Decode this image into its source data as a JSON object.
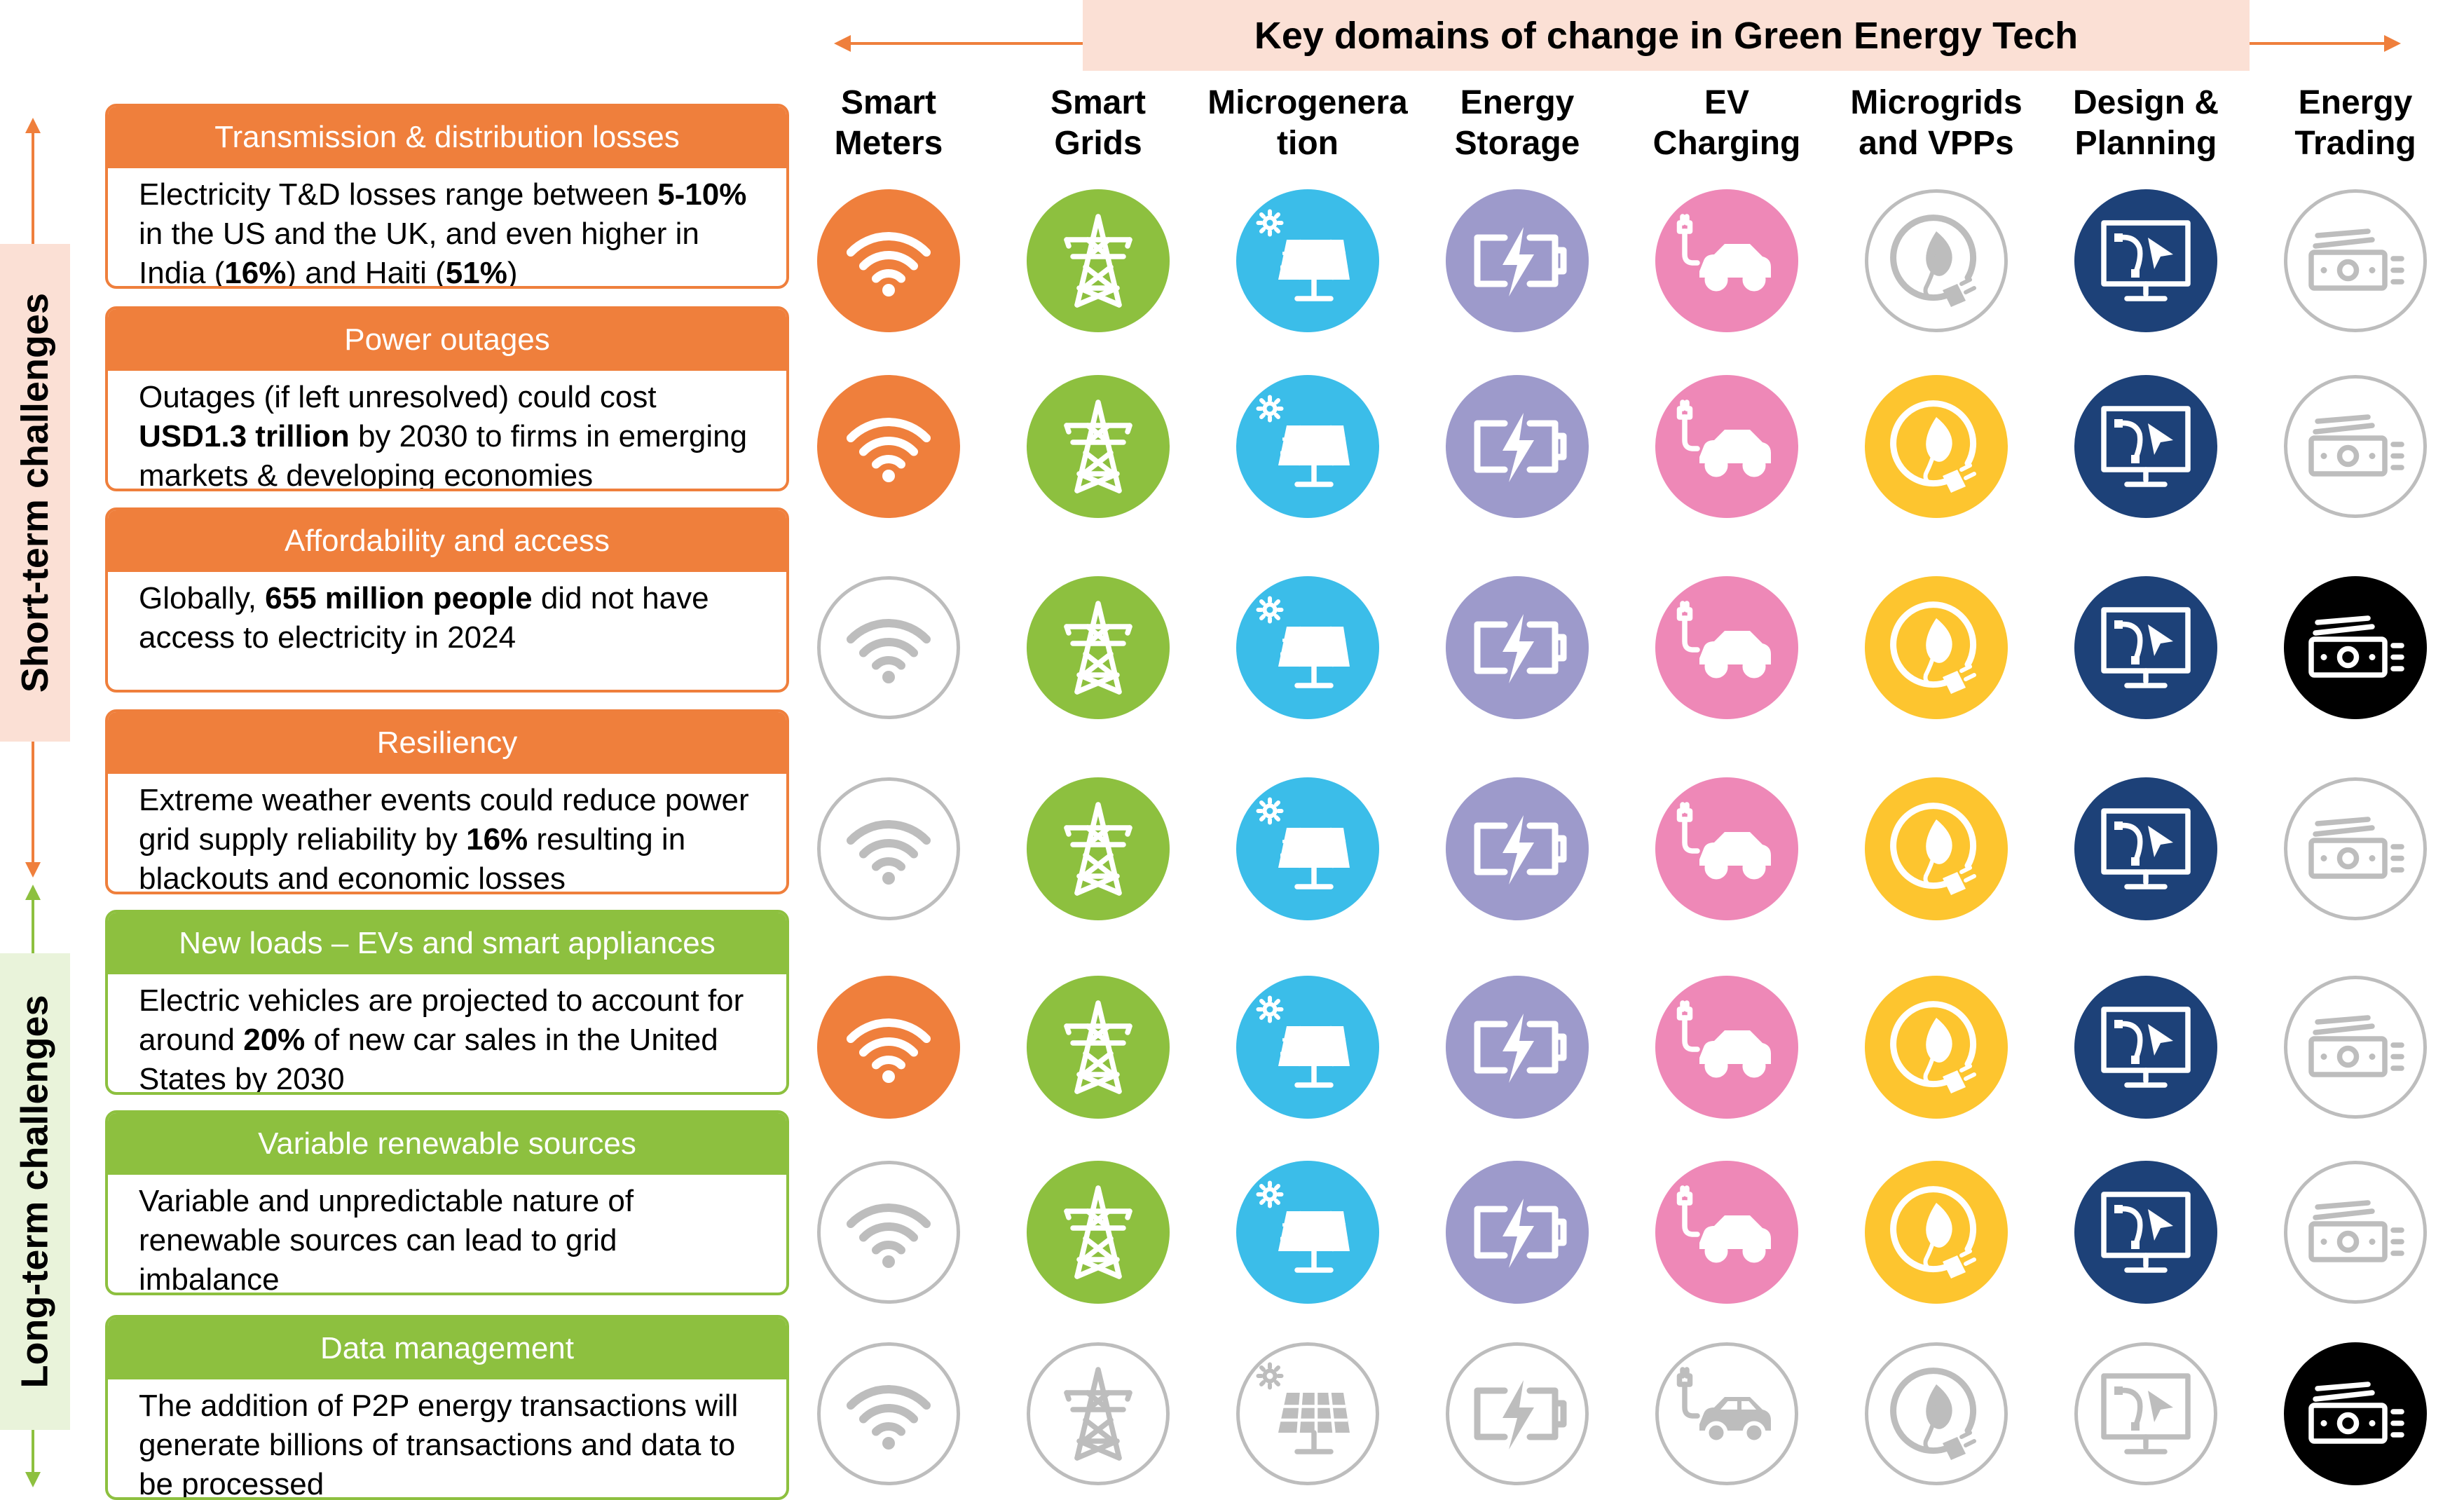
{
  "title": "Key domains of change in Green Energy Tech",
  "side_labels": {
    "short_term": "Short-term challenges",
    "long_term": "Long-term challenges"
  },
  "colors": {
    "orange": "#ef7f3c",
    "green": "#8dc03f",
    "inactive_gray": "#bdbdbd",
    "banner_bg": "#fbe0d5",
    "long_term_bg": "#e9f3da"
  },
  "domains": [
    {
      "line1": "Smart",
      "line2": "Meters",
      "icon": "wifi-icon",
      "color": "#ef7f3c"
    },
    {
      "line1": "Smart",
      "line2": "Grids",
      "icon": "transmission-tower-icon",
      "color": "#8dc03f"
    },
    {
      "line1": "Microgenera",
      "line2": "tion",
      "icon": "solar-panel-icon",
      "color": "#3bbde9"
    },
    {
      "line1": "Energy",
      "line2": "Storage",
      "icon": "battery-icon",
      "color": "#9d9acb"
    },
    {
      "line1": "EV",
      "line2": "Charging",
      "icon": "ev-car-icon",
      "color": "#ee88b7"
    },
    {
      "line1": "Microgrids",
      "line2": "and VPPs",
      "icon": "leaf-plug-icon",
      "color": "#fdc52f"
    },
    {
      "line1": "Design &",
      "line2": "Planning",
      "icon": "monitor-icon",
      "color": "#1d4178"
    },
    {
      "line1": "Energy",
      "line2": "Trading",
      "icon": "banknote-icon",
      "color": "#000000"
    }
  ],
  "challenges": [
    {
      "title": "Transmission & distribution losses",
      "group": "short-term",
      "body": [
        {
          "t": "Electricity T&D losses range between "
        },
        {
          "t": "5-10%",
          "b": true
        },
        {
          "t": " in the US and the UK, and even higher in India ("
        },
        {
          "t": "16%",
          "b": true
        },
        {
          "t": ") and Haiti ("
        },
        {
          "t": "51%",
          "b": true
        },
        {
          "t": ")"
        }
      ],
      "active": [
        true,
        true,
        true,
        true,
        true,
        false,
        true,
        false
      ]
    },
    {
      "title": "Power outages",
      "group": "short-term",
      "body": [
        {
          "t": "Outages (if left unresolved) could cost "
        },
        {
          "t": "USD1.3 trillion",
          "b": true
        },
        {
          "t": " by 2030 to firms in emerging markets & developing economies"
        }
      ],
      "active": [
        true,
        true,
        true,
        true,
        true,
        true,
        true,
        false
      ]
    },
    {
      "title": "Affordability and access",
      "group": "short-term",
      "body": [
        {
          "t": "Globally, "
        },
        {
          "t": "655 million people",
          "b": true
        },
        {
          "t": " did not have access to electricity in 2024"
        }
      ],
      "active": [
        false,
        true,
        true,
        true,
        true,
        true,
        true,
        true
      ]
    },
    {
      "title": "Resiliency",
      "group": "short-term",
      "body": [
        {
          "t": "Extreme weather events could reduce power grid supply reliability by "
        },
        {
          "t": "16%",
          "b": true
        },
        {
          "t": " resulting in blackouts and economic losses"
        }
      ],
      "active": [
        false,
        true,
        true,
        true,
        true,
        true,
        true,
        false
      ]
    },
    {
      "title": "New loads – EVs and smart appliances",
      "group": "long-term",
      "body": [
        {
          "t": "Electric vehicles are projected to account for around "
        },
        {
          "t": "20%",
          "b": true
        },
        {
          "t": " of new car sales in the United States by 2030"
        }
      ],
      "active": [
        true,
        true,
        true,
        true,
        true,
        true,
        true,
        false
      ]
    },
    {
      "title": "Variable renewable sources",
      "group": "long-term",
      "body": [
        {
          "t": "Variable and unpredictable nature of renewable sources can lead to grid imbalance"
        }
      ],
      "active": [
        false,
        true,
        true,
        true,
        true,
        true,
        true,
        false
      ]
    },
    {
      "title": "Data management",
      "group": "long-term",
      "body": [
        {
          "t": "The addition of P2P energy transactions will generate billions of transactions and data to be processed"
        }
      ],
      "active": [
        false,
        false,
        false,
        false,
        false,
        false,
        false,
        true
      ]
    }
  ]
}
